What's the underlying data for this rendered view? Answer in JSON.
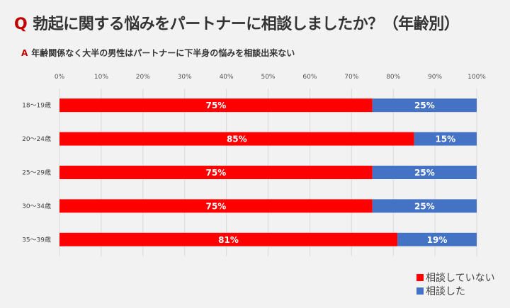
{
  "title": {
    "prefix": "Q",
    "text": "勃起に関する悩みをパートナーに相談しましたか？（年齢別）"
  },
  "subtitle": {
    "prefix": "A",
    "text": "年齢関係なく大半の男性はパートナーに下半身の悩みを相談出来ない"
  },
  "chart_data": {
    "type": "bar",
    "orientation": "horizontal",
    "stacked": true,
    "categories": [
      "18〜19歳",
      "20〜24歳",
      "25〜29歳",
      "30〜34歳",
      "35〜39歳"
    ],
    "series": [
      {
        "name": "相談していない",
        "values": [
          75,
          85,
          75,
          75,
          81
        ],
        "labels": [
          "75%",
          "85%",
          "75%",
          "75%",
          "81%"
        ],
        "color": "#ff0000"
      },
      {
        "name": "相談した",
        "values": [
          25,
          15,
          25,
          25,
          19
        ],
        "labels": [
          "25%",
          "15%",
          "25%",
          "25%",
          "19%"
        ],
        "color": "#4472c4"
      }
    ],
    "xlim": [
      0,
      100
    ],
    "xticks": [
      "0%",
      "10%",
      "20%",
      "30%",
      "40%",
      "50%",
      "60%",
      "70%",
      "80%",
      "90%",
      "100%"
    ],
    "grid": true,
    "legend": "bottom-right"
  }
}
